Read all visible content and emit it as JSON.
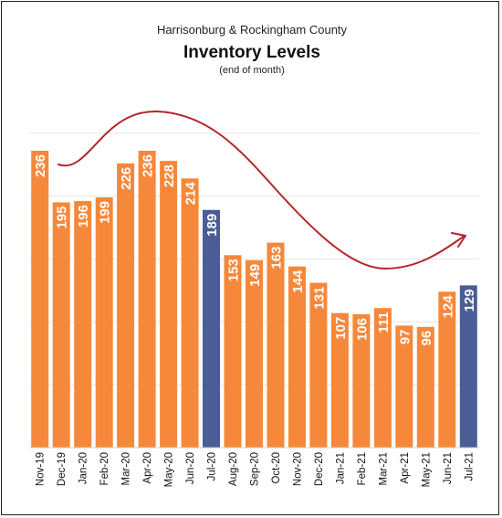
{
  "chart_data": {
    "type": "bar",
    "title": "Inventory Levels",
    "supertitle": "Harrisonburg & Rockingham County",
    "subtitle": "(end of month)",
    "categories": [
      "Nov-19",
      "Dec-19",
      "Jan-20",
      "Feb-20",
      "Mar-20",
      "Apr-20",
      "May-20",
      "Jun-20",
      "Jul-20",
      "Aug-20",
      "Sep-20",
      "Oct-20",
      "Nov-20",
      "Dec-20",
      "Jan-21",
      "Feb-21",
      "Mar-21",
      "Apr-21",
      "May-21",
      "Jun-21",
      "Jul-21"
    ],
    "values": [
      236,
      195,
      196,
      199,
      226,
      236,
      228,
      214,
      189,
      153,
      149,
      163,
      144,
      131,
      107,
      106,
      111,
      97,
      96,
      124,
      129
    ],
    "highlight": [
      "Jul-20",
      "Jul-21"
    ],
    "ylim": [
      0,
      260
    ],
    "xlabel": "",
    "ylabel": "",
    "grid": false,
    "colors": {
      "bar": "#F5883A",
      "highlight": "#4A5D96",
      "trend": "#B5262B",
      "gridline": "#e6e6e6"
    },
    "annotation": "trend-curve-arrow"
  }
}
